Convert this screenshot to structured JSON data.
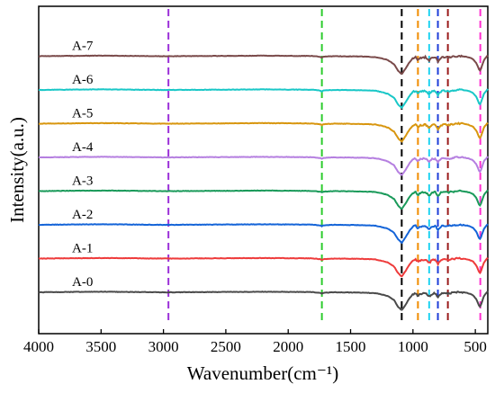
{
  "chart_data": {
    "type": "line",
    "title": "",
    "xlabel": "Wavenumber(cm⁻¹)",
    "ylabel": "Intensity(a.u.)",
    "xlim": [
      4000,
      400
    ],
    "x_reversed": true,
    "y_ticks_shown": false,
    "x_ticks": [
      "4000",
      "3500",
      "3000",
      "2500",
      "2000",
      "1500",
      "1000",
      "500"
    ],
    "legend": "labels drawn next to each curve at left",
    "reference_lines": [
      {
        "x": 2960,
        "color": "#9b30d9",
        "style": "dashed"
      },
      {
        "x": 1730,
        "color": "#2ecc2e",
        "style": "dashed"
      },
      {
        "x": 1090,
        "color": "#000000",
        "style": "dashed"
      },
      {
        "x": 960,
        "color": "#f08c00",
        "style": "dashed"
      },
      {
        "x": 870,
        "color": "#21d4f2",
        "style": "dashed"
      },
      {
        "x": 800,
        "color": "#1f3fd9",
        "style": "dashed"
      },
      {
        "x": 720,
        "color": "#9b1c1c",
        "style": "dashed"
      },
      {
        "x": 460,
        "color": "#ff2fd0",
        "style": "dashed"
      }
    ],
    "series": [
      {
        "name": "A-0",
        "color": "#4a4a4a",
        "offset": 0
      },
      {
        "name": "A-1",
        "color": "#ee3b3b",
        "offset": 1
      },
      {
        "name": "A-2",
        "color": "#1464d8",
        "offset": 2
      },
      {
        "name": "A-3",
        "color": "#1a9a5a",
        "offset": 3
      },
      {
        "name": "A-4",
        "color": "#b57fe0",
        "offset": 4
      },
      {
        "name": "A-5",
        "color": "#d8960f",
        "offset": 5
      },
      {
        "name": "A-6",
        "color": "#19c7c7",
        "offset": 6
      },
      {
        "name": "A-7",
        "color": "#7a4a4a",
        "offset": 7
      }
    ],
    "profile": {
      "x": [
        4000,
        3700,
        3500,
        3300,
        3000,
        2960,
        2700,
        2400,
        2200,
        2000,
        1800,
        1740,
        1730,
        1720,
        1640,
        1500,
        1400,
        1300,
        1250,
        1200,
        1150,
        1120,
        1090,
        1060,
        1030,
        1000,
        980,
        960,
        940,
        900,
        870,
        850,
        820,
        800,
        780,
        760,
        740,
        720,
        700,
        650,
        600,
        560,
        520,
        490,
        470,
        460,
        450,
        430,
        400
      ],
      "y": [
        0.0,
        0.02,
        0.03,
        0.02,
        0.0,
        0.0,
        0.01,
        0.02,
        0.03,
        0.02,
        0.01,
        -0.04,
        -0.08,
        -0.03,
        0.0,
        -0.01,
        -0.02,
        -0.05,
        -0.12,
        -0.22,
        -0.45,
        -0.8,
        -1.0,
        -0.7,
        -0.35,
        -0.1,
        -0.05,
        -0.2,
        -0.1,
        -0.05,
        -0.25,
        -0.1,
        -0.05,
        -0.3,
        -0.1,
        -0.05,
        -0.05,
        -0.08,
        -0.05,
        0.0,
        0.0,
        -0.05,
        -0.15,
        -0.4,
        -0.75,
        -0.8,
        -0.6,
        -0.2,
        0.05
      ]
    }
  }
}
